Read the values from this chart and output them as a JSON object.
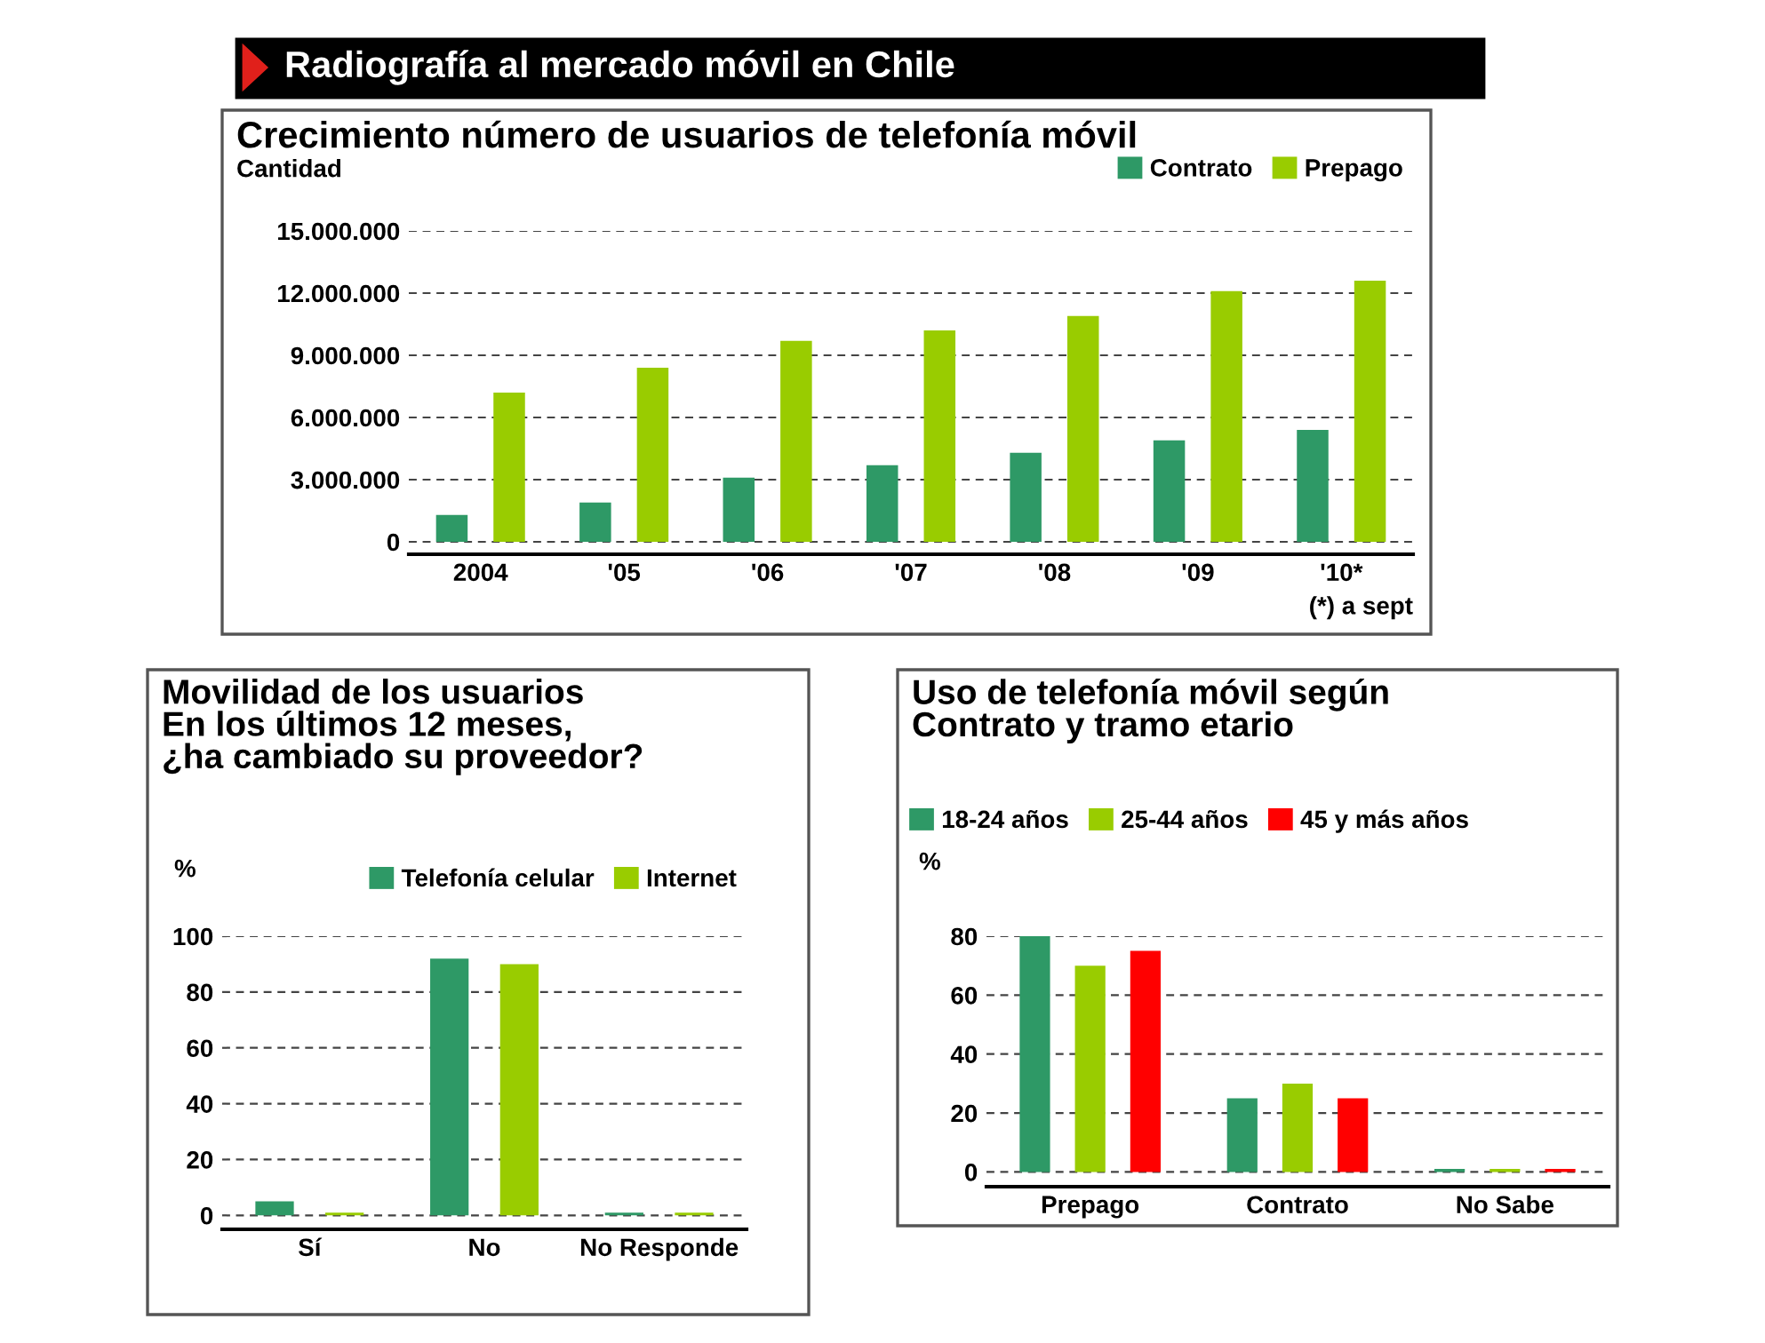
{
  "chart_data": [
    {
      "type": "bar",
      "title": "Crecimiento número de usuarios de telefonía móvil",
      "ylabel": "Cantidad",
      "categories": [
        "2004",
        "'05",
        "'06",
        "'07",
        "'08",
        "'09",
        "'10*"
      ],
      "series": [
        {
          "name": "Contrato",
          "color": "#2e9966",
          "values": [
            1300000,
            1900000,
            3100000,
            3700000,
            4300000,
            4900000,
            5400000
          ]
        },
        {
          "name": "Prepago",
          "color": "#99cc00",
          "values": [
            7200000,
            8400000,
            9700000,
            10200000,
            10900000,
            12100000,
            12600000
          ]
        }
      ],
      "ylim": [
        -600000,
        15000000
      ],
      "yticks": [
        {
          "value": 0,
          "label": "0"
        },
        {
          "value": 3000000,
          "label": "3.000.000"
        },
        {
          "value": 6000000,
          "label": "6.000.000"
        },
        {
          "value": 9000000,
          "label": "9.000.000"
        },
        {
          "value": 12000000,
          "label": "12.000.000"
        },
        {
          "value": 15000000,
          "label": "15.000.000"
        }
      ],
      "grid": "y",
      "legend": "top right",
      "annotations": [
        "Radiografía al mercado móvil en Chile",
        "(*) a sept"
      ]
    },
    {
      "type": "bar",
      "title": "Movilidad de los usuarios\nEn los últimos 12 meses,\n¿ha cambiado su proveedor?",
      "ylabel": "%",
      "categories": [
        "Sí",
        "No",
        "No Responde"
      ],
      "series": [
        {
          "name": "Telefonía celular",
          "color": "#2e9966",
          "values": [
            5,
            92,
            1
          ]
        },
        {
          "name": "Internet",
          "color": "#99cc00",
          "values": [
            1,
            90,
            1
          ]
        }
      ],
      "ylim": [
        -5,
        100
      ],
      "yticks": [
        0,
        20,
        40,
        60,
        80,
        100
      ],
      "grid": "y",
      "legend": "top right"
    },
    {
      "type": "bar",
      "title": "Uso de telefonía móvil según\nContrato y tramo etario",
      "ylabel": "%",
      "categories": [
        "Prepago",
        "Contrato",
        "No Sabe"
      ],
      "series": [
        {
          "name": "18-24 años",
          "color": "#2e9966",
          "values": [
            80,
            25,
            1
          ]
        },
        {
          "name": "25-44 años",
          "color": "#99cc00",
          "values": [
            70,
            30,
            1
          ]
        },
        {
          "name": "45 y más años",
          "color": "#ff0000",
          "values": [
            75,
            25,
            1
          ]
        }
      ],
      "ylim": [
        -5,
        80
      ],
      "yticks": [
        0,
        20,
        40,
        60,
        80
      ],
      "grid": "y",
      "legend": "top left"
    }
  ]
}
